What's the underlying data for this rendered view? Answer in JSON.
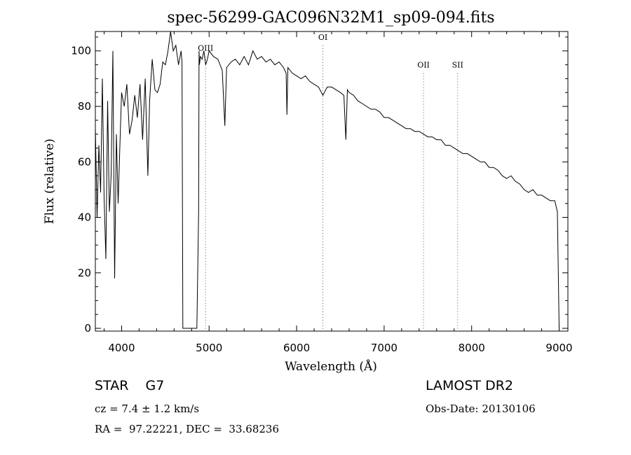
{
  "chart_data": {
    "type": "line",
    "title": "spec-56299-GAC096N32M1_sp09-094.fits",
    "xlabel": "Wavelength (Å)",
    "ylabel": "Flux (relative)",
    "xlim": [
      3700,
      9100
    ],
    "ylim": [
      -1,
      107
    ],
    "x_ticks": [
      4000,
      5000,
      6000,
      7000,
      8000,
      9000
    ],
    "x_tick_labels": [
      "4000",
      "5000",
      "6000",
      "7000",
      "8000",
      "9000"
    ],
    "y_ticks": [
      0,
      20,
      40,
      60,
      80,
      100
    ],
    "y_tick_labels": [
      "0",
      "20",
      "40",
      "60",
      "80",
      "100"
    ],
    "grid": false,
    "line_color": "#000000",
    "marker_color": "#555555",
    "series": [
      {
        "name": "flux",
        "x": [
          3700,
          3720,
          3740,
          3760,
          3780,
          3800,
          3820,
          3840,
          3860,
          3880,
          3900,
          3920,
          3940,
          3960,
          3980,
          4000,
          4030,
          4060,
          4090,
          4120,
          4150,
          4180,
          4210,
          4240,
          4270,
          4300,
          4320,
          4350,
          4380,
          4410,
          4440,
          4470,
          4500,
          4530,
          4560,
          4590,
          4620,
          4650,
          4680,
          4690,
          4700,
          4710,
          4720,
          4740,
          4760,
          4780,
          4800,
          4820,
          4840,
          4860,
          4880,
          4885,
          4890,
          4900,
          4920,
          4940,
          4960,
          4980,
          5000,
          5050,
          5100,
          5150,
          5180,
          5200,
          5250,
          5300,
          5350,
          5400,
          5450,
          5500,
          5550,
          5600,
          5650,
          5700,
          5750,
          5800,
          5850,
          5880,
          5890,
          5900,
          5950,
          6000,
          6050,
          6100,
          6150,
          6200,
          6250,
          6300,
          6350,
          6400,
          6450,
          6500,
          6540,
          6563,
          6580,
          6600,
          6650,
          6700,
          6750,
          6800,
          6850,
          6900,
          6950,
          7000,
          7050,
          7100,
          7150,
          7200,
          7250,
          7300,
          7350,
          7400,
          7450,
          7500,
          7550,
          7600,
          7650,
          7700,
          7750,
          7800,
          7850,
          7900,
          7950,
          8000,
          8050,
          8100,
          8150,
          8200,
          8250,
          8300,
          8350,
          8400,
          8450,
          8500,
          8550,
          8600,
          8650,
          8700,
          8750,
          8800,
          8850,
          8900,
          8950,
          8980,
          9000,
          9005
        ],
        "y": [
          72,
          40,
          66,
          49,
          90,
          47,
          25,
          82,
          42,
          55,
          100,
          18,
          70,
          45,
          65,
          85,
          80,
          88,
          70,
          75,
          84,
          76,
          88,
          68,
          90,
          55,
          82,
          97,
          86,
          85,
          88,
          96,
          95,
          100,
          108,
          100,
          102,
          95,
          100,
          96,
          0,
          0,
          0,
          0,
          0,
          0,
          0,
          0,
          0,
          0,
          42,
          100,
          95,
          98,
          97,
          100,
          95,
          97,
          100,
          98,
          97,
          93,
          73,
          94,
          96,
          97,
          95,
          98,
          95,
          100,
          97,
          98,
          96,
          97,
          95,
          96,
          94,
          92,
          77,
          94,
          92,
          91,
          90,
          91,
          89,
          88,
          87,
          84,
          87,
          87,
          86,
          85,
          84,
          68,
          86,
          85,
          84,
          82,
          81,
          80,
          79,
          79,
          78,
          76,
          76,
          75,
          74,
          73,
          72,
          72,
          71,
          71,
          70,
          69,
          69,
          68,
          68,
          66,
          66,
          65,
          64,
          63,
          63,
          62,
          61,
          60,
          60,
          58,
          58,
          57,
          55,
          54,
          55,
          53,
          52,
          50,
          49,
          50,
          48,
          48,
          47,
          46,
          46,
          42,
          0,
          0
        ]
      }
    ],
    "markers": [
      {
        "label": "OIII",
        "x": 4959,
        "label_y": 100
      },
      {
        "label": "OI",
        "x": 6300,
        "label_y": 104
      },
      {
        "label": "OII",
        "x": 7450,
        "label_y": 94
      },
      {
        "label": "SII",
        "x": 7840,
        "label_y": 94
      }
    ]
  },
  "info": {
    "star_class": "STAR    G7",
    "survey": "LAMOST DR2",
    "redshift": "cz = 7.4 ± 1.2 km/s",
    "obs_date": "Obs-Date: 20130106",
    "coords": "RA =  97.22221, DEC =  33.68236"
  }
}
